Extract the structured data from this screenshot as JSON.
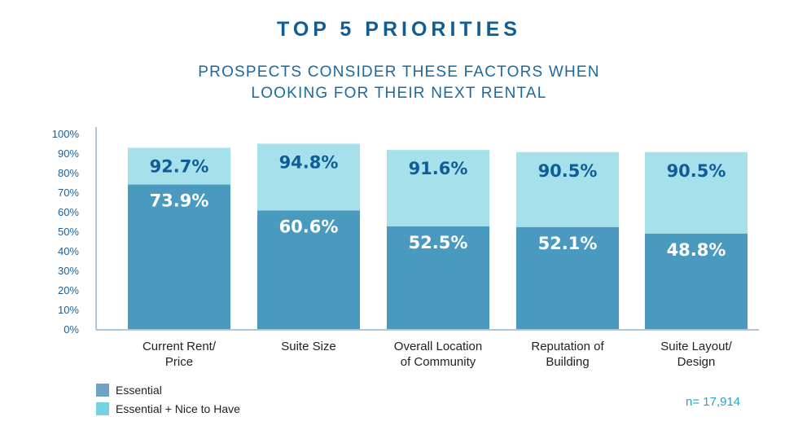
{
  "chart_data": {
    "type": "bar",
    "title": "TOP 5 PRIORITIES",
    "subtitle": [
      "PROSPECTS CONSIDER THESE FACTORS WHEN",
      "LOOKING FOR THEIR NEXT RENTAL"
    ],
    "categories": [
      [
        "Current Rent/",
        "Price"
      ],
      [
        "Suite Size"
      ],
      [
        "Overall Location",
        "of Community"
      ],
      [
        "Reputation of",
        "Building"
      ],
      [
        "Suite Layout/",
        "Design"
      ]
    ],
    "series": [
      {
        "name": "Essential",
        "values": [
          73.9,
          60.6,
          52.5,
          52.1,
          48.8
        ],
        "labels": [
          "73.9%",
          "60.6%",
          "52.5%",
          "52.1%",
          "48.8%"
        ],
        "color": "#4a9ac0",
        "legend_color": "#6fa3c4"
      },
      {
        "name": "Essential + Nice to Have",
        "values": [
          92.7,
          94.8,
          91.6,
          90.5,
          90.5
        ],
        "labels": [
          "92.7%",
          "94.8%",
          "91.6%",
          "90.5%",
          "90.5%"
        ],
        "color": "#a6e0ea",
        "legend_color": "#76d2e0"
      }
    ],
    "yticks": [
      "0%",
      "10%",
      "20%",
      "30%",
      "40%",
      "50%",
      "60%",
      "70%",
      "80%",
      "90%",
      "100%"
    ],
    "ylim": [
      0,
      100
    ],
    "grid": false,
    "legend_position": "bottom-left",
    "note": "n= 17,914"
  }
}
